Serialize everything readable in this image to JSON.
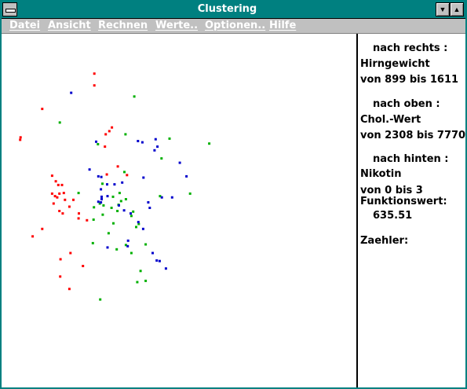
{
  "window": {
    "title": "Clustering",
    "sysmenu_icon": "window-menu-icon",
    "min_icon": "▼",
    "max_icon": "▲"
  },
  "menu": {
    "items": [
      "Datei",
      "Ansicht",
      "Rechnen",
      "Werte..",
      "Optionen..",
      "Hilfe"
    ]
  },
  "panel": {
    "x_header": "nach rechts :",
    "x_var": "Hirngewicht",
    "x_range": "von 899 bis 1611",
    "y_header": "nach oben :",
    "y_var": "Chol.-Wert",
    "y_range": "von 2308 bis 7770",
    "z_header": "nach hinten :",
    "z_var": "Nikotin",
    "z_range": "von 0 bis 3",
    "func_label": "Funktionswert:",
    "func_value": "635.51",
    "counter_label": "Zaehler:"
  },
  "chart_data": {
    "type": "scatter",
    "title": "",
    "xlabel": "Hirngewicht",
    "ylabel": "Chol.-Wert",
    "xlim": [
      899,
      1611
    ],
    "ylim": [
      2308,
      7770
    ],
    "grid": false,
    "legend": "none",
    "series": [
      {
        "color": "#ff0000",
        "points": [
          [
            1126,
            7380
          ],
          [
            1126,
            7190
          ],
          [
            984,
            6810
          ],
          [
            1174,
            6510
          ],
          [
            1167,
            6450
          ],
          [
            1157,
            6400
          ],
          [
            925,
            6350
          ],
          [
            924,
            6310
          ],
          [
            1155,
            6200
          ],
          [
            1190,
            5880
          ],
          [
            1011,
            5730
          ],
          [
            1160,
            5750
          ],
          [
            1215,
            5740
          ],
          [
            1021,
            5640
          ],
          [
            1028,
            5580
          ],
          [
            1038,
            5580
          ],
          [
            1011,
            5440
          ],
          [
            1031,
            5440
          ],
          [
            1043,
            5450
          ],
          [
            1019,
            5400
          ],
          [
            1025,
            5380
          ],
          [
            1046,
            5340
          ],
          [
            1069,
            5340
          ],
          [
            1015,
            5280
          ],
          [
            1058,
            5230
          ],
          [
            1031,
            5160
          ],
          [
            1040,
            5120
          ],
          [
            1084,
            5120
          ],
          [
            1083,
            5040
          ],
          [
            1106,
            5010
          ],
          [
            984,
            4870
          ],
          [
            958,
            4750
          ],
          [
            1061,
            4480
          ],
          [
            1034,
            4380
          ],
          [
            1095,
            4270
          ],
          [
            1033,
            4100
          ],
          [
            1058,
            3900
          ]
        ]
      },
      {
        "color": "#00b000",
        "points": [
          [
            1235,
            7010
          ],
          [
            1032,
            6590
          ],
          [
            1211,
            6400
          ],
          [
            1331,
            6330
          ],
          [
            1439,
            6250
          ],
          [
            1136,
            6240
          ],
          [
            1309,
            6010
          ],
          [
            1208,
            5790
          ],
          [
            1148,
            5600
          ],
          [
            1083,
            5450
          ],
          [
            1195,
            5450
          ],
          [
            1177,
            5390
          ],
          [
            1305,
            5400
          ],
          [
            1387,
            5440
          ],
          [
            1212,
            5350
          ],
          [
            1199,
            5320
          ],
          [
            1141,
            5280
          ],
          [
            1192,
            5260
          ],
          [
            1151,
            5250
          ],
          [
            1173,
            5210
          ],
          [
            1125,
            5220
          ],
          [
            1189,
            5160
          ],
          [
            1232,
            5150
          ],
          [
            1227,
            5080
          ],
          [
            1149,
            5100
          ],
          [
            1124,
            5020
          ],
          [
            1178,
            4960
          ],
          [
            1247,
            4950
          ],
          [
            1240,
            4900
          ],
          [
            1165,
            4800
          ],
          [
            1122,
            4640
          ],
          [
            1212,
            4610
          ],
          [
            1266,
            4620
          ],
          [
            1187,
            4540
          ],
          [
            1227,
            4480
          ],
          [
            1252,
            4190
          ],
          [
            1243,
            4010
          ],
          [
            1266,
            4030
          ],
          [
            1142,
            3730
          ]
        ]
      },
      {
        "color": "#0000cc",
        "points": [
          [
            1063,
            7070
          ],
          [
            1293,
            6320
          ],
          [
            1245,
            6290
          ],
          [
            1131,
            6280
          ],
          [
            1257,
            6270
          ],
          [
            1298,
            6200
          ],
          [
            1290,
            6140
          ],
          [
            1359,
            5940
          ],
          [
            1113,
            5830
          ],
          [
            1260,
            5700
          ],
          [
            1377,
            5720
          ],
          [
            1137,
            5720
          ],
          [
            1145,
            5710
          ],
          [
            1202,
            5620
          ],
          [
            1161,
            5590
          ],
          [
            1181,
            5590
          ],
          [
            1144,
            5510
          ],
          [
            1146,
            5390
          ],
          [
            1162,
            5400
          ],
          [
            1310,
            5380
          ],
          [
            1338,
            5380
          ],
          [
            1146,
            5350
          ],
          [
            1137,
            5310
          ],
          [
            1144,
            5300
          ],
          [
            1273,
            5300
          ],
          [
            1193,
            5250
          ],
          [
            1277,
            5210
          ],
          [
            1207,
            5170
          ],
          [
            1225,
            5120
          ],
          [
            1246,
            4980
          ],
          [
            1259,
            4870
          ],
          [
            1218,
            4680
          ],
          [
            1217,
            4590
          ],
          [
            1162,
            4570
          ],
          [
            1285,
            4480
          ],
          [
            1296,
            4360
          ],
          [
            1304,
            4350
          ],
          [
            1321,
            4230
          ]
        ]
      }
    ]
  }
}
